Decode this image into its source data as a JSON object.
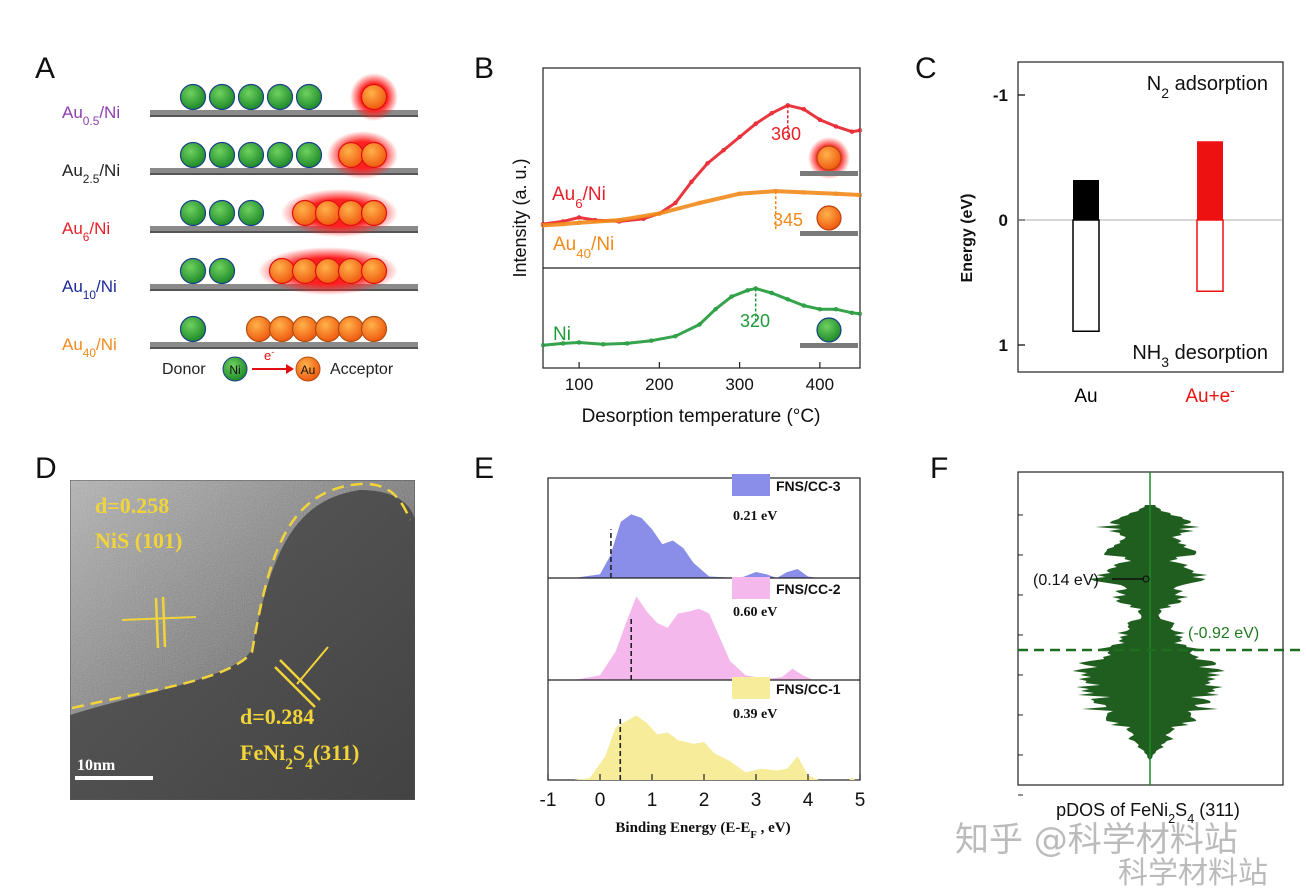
{
  "panel_labels": [
    "A",
    "B",
    "C",
    "D",
    "E",
    "F"
  ],
  "panelA": {
    "rows": [
      {
        "label": "Au",
        "sub": "0.5",
        "suffix": "/Ni",
        "color": "#8e3fb0",
        "donors": 5,
        "acceptors": 1
      },
      {
        "label": "Au",
        "sub": "2.5",
        "suffix": "/Ni",
        "color": "#222222",
        "donors": 5,
        "acceptors": 2
      },
      {
        "label": "Au",
        "sub": "6",
        "suffix": "/Ni",
        "color": "#e8202a",
        "donors": 3,
        "acceptors": 4
      },
      {
        "label": "Au",
        "sub": "10",
        "suffix": "/Ni",
        "color": "#1b2a9a",
        "donors": 2,
        "acceptors": 5
      },
      {
        "label": "Au",
        "sub": "40",
        "suffix": "/Ni",
        "color": "#f08a1c",
        "donors": 1,
        "acceptors": 6
      }
    ],
    "legend": {
      "donor": "Donor",
      "ni": "Ni",
      "electron": "e",
      "electron_sup": "-",
      "au": "Au",
      "acceptor": "Acceptor"
    }
  },
  "chart_data": [
    {
      "type": "line",
      "panel": "B",
      "xlabel": "Desorption temperature (°C)",
      "ylabel": "Intensity (a. u.)",
      "x_ticks": [
        100,
        200,
        300,
        400
      ],
      "xlim": [
        55,
        450
      ],
      "series": [
        {
          "name": "Au6/Ni",
          "label_main": "Au",
          "label_sub": "6",
          "label_suffix": "/Ni",
          "color": "#e8202a",
          "subplot": "top",
          "peak_label": "360",
          "peak_x": 360,
          "points": [
            [
              55,
              0.06
            ],
            [
              80,
              0.08
            ],
            [
              100,
              0.11
            ],
            [
              120,
              0.09
            ],
            [
              150,
              0.08
            ],
            [
              180,
              0.1
            ],
            [
              200,
              0.14
            ],
            [
              220,
              0.22
            ],
            [
              240,
              0.38
            ],
            [
              260,
              0.52
            ],
            [
              280,
              0.62
            ],
            [
              300,
              0.72
            ],
            [
              320,
              0.82
            ],
            [
              340,
              0.9
            ],
            [
              360,
              0.96
            ],
            [
              380,
              0.93
            ],
            [
              400,
              0.85
            ],
            [
              420,
              0.8
            ],
            [
              440,
              0.76
            ],
            [
              450,
              0.77
            ]
          ]
        },
        {
          "name": "Au40/Ni",
          "label_main": "Au",
          "label_sub": "40",
          "label_suffix": "/Ni",
          "color": "#f28a1a",
          "subplot": "top",
          "peak_label": "345",
          "peak_x": 345,
          "points": [
            [
              55,
              0.05
            ],
            [
              80,
              0.06
            ],
            [
              100,
              0.07
            ],
            [
              150,
              0.09
            ],
            [
              200,
              0.14
            ],
            [
              250,
              0.22
            ],
            [
              300,
              0.29
            ],
            [
              345,
              0.31
            ],
            [
              380,
              0.3
            ],
            [
              420,
              0.29
            ],
            [
              450,
              0.28
            ]
          ]
        },
        {
          "name": "Ni",
          "label_main": "Ni",
          "label_sub": "",
          "label_suffix": "",
          "color": "#1f9a3a",
          "subplot": "bottom",
          "peak_label": "320",
          "peak_x": 320,
          "points": [
            [
              55,
              0.12
            ],
            [
              80,
              0.14
            ],
            [
              100,
              0.15
            ],
            [
              130,
              0.13
            ],
            [
              160,
              0.14
            ],
            [
              190,
              0.17
            ],
            [
              220,
              0.22
            ],
            [
              250,
              0.35
            ],
            [
              270,
              0.52
            ],
            [
              290,
              0.66
            ],
            [
              310,
              0.73
            ],
            [
              320,
              0.75
            ],
            [
              340,
              0.7
            ],
            [
              360,
              0.63
            ],
            [
              380,
              0.56
            ],
            [
              400,
              0.52
            ],
            [
              420,
              0.52
            ],
            [
              440,
              0.48
            ],
            [
              450,
              0.47
            ]
          ]
        }
      ]
    },
    {
      "type": "bar",
      "panel": "C",
      "ylabel": "Energy (eV)",
      "y_ticks": [
        "-1",
        "0",
        "1"
      ],
      "ylim": [
        -1.2,
        1.2
      ],
      "categories": [
        "Au",
        "Au+e"
      ],
      "category_sup": [
        "",
        "-"
      ],
      "category_colors": [
        "#000000",
        "#ee1111"
      ],
      "annotation_top": "N2 adsorption",
      "annotation_top_main": "N",
      "annotation_top_sub": "2",
      "annotation_top_rest": " adsorption",
      "annotation_bottom_main": "NH",
      "annotation_bottom_sub": "3",
      "annotation_bottom_rest": " desorption",
      "series": [
        {
          "name": "N2 adsorption",
          "values": [
            -0.32,
            -0.63
          ],
          "style": "filled"
        },
        {
          "name": "NH3 desorption",
          "values": [
            0.89,
            0.57
          ],
          "style": "open"
        }
      ]
    },
    {
      "type": "area",
      "panel": "E",
      "xlabel_main": "Binding Energy (E-E",
      "xlabel_sub": "F",
      "xlabel_rest": " , eV)",
      "x_ticks": [
        -1,
        0,
        1,
        2,
        3,
        4,
        5
      ],
      "xlim": [
        -1,
        5
      ],
      "series": [
        {
          "name": "FNS/CC-3",
          "value_label": "0.21 eV",
          "center": 0.21,
          "color": "#8a8ee8",
          "points": [
            [
              -0.5,
              0
            ],
            [
              0,
              0.05
            ],
            [
              0.2,
              0.3
            ],
            [
              0.4,
              0.75
            ],
            [
              0.6,
              0.85
            ],
            [
              0.8,
              0.8
            ],
            [
              1.0,
              0.65
            ],
            [
              1.2,
              0.45
            ],
            [
              1.4,
              0.5
            ],
            [
              1.6,
              0.4
            ],
            [
              1.8,
              0.2
            ],
            [
              2.1,
              0.02
            ],
            [
              2.7,
              0
            ],
            [
              3.0,
              0.08
            ],
            [
              3.2,
              0.05
            ],
            [
              3.4,
              0.0
            ],
            [
              3.6,
              0.08
            ],
            [
              3.8,
              0.12
            ],
            [
              4.0,
              0.02
            ],
            [
              4.2,
              0
            ]
          ]
        },
        {
          "name": "FNS/CC-2",
          "value_label": "0.60 eV",
          "center": 0.6,
          "color": "#f5b8ec",
          "points": [
            [
              -0.5,
              0
            ],
            [
              0,
              0.05
            ],
            [
              0.3,
              0.3
            ],
            [
              0.5,
              0.6
            ],
            [
              0.7,
              0.88
            ],
            [
              0.9,
              0.72
            ],
            [
              1.1,
              0.6
            ],
            [
              1.3,
              0.55
            ],
            [
              1.5,
              0.7
            ],
            [
              1.7,
              0.72
            ],
            [
              1.9,
              0.75
            ],
            [
              2.1,
              0.7
            ],
            [
              2.3,
              0.45
            ],
            [
              2.5,
              0.2
            ],
            [
              2.8,
              0.05
            ],
            [
              3.2,
              0.01
            ],
            [
              3.5,
              0.03
            ],
            [
              3.7,
              0.12
            ],
            [
              3.9,
              0.05
            ],
            [
              4.1,
              0
            ]
          ]
        },
        {
          "name": "FNS/CC-1",
          "value_label": "0.39 eV",
          "center": 0.39,
          "color": "#f6ec99",
          "points": [
            [
              -0.5,
              0
            ],
            [
              -0.2,
              0.02
            ],
            [
              0.1,
              0.25
            ],
            [
              0.3,
              0.55
            ],
            [
              0.5,
              0.62
            ],
            [
              0.7,
              0.68
            ],
            [
              0.9,
              0.6
            ],
            [
              1.1,
              0.48
            ],
            [
              1.3,
              0.5
            ],
            [
              1.5,
              0.42
            ],
            [
              1.8,
              0.38
            ],
            [
              2.0,
              0.4
            ],
            [
              2.2,
              0.28
            ],
            [
              2.5,
              0.2
            ],
            [
              2.8,
              0.08
            ],
            [
              3.1,
              0.12
            ],
            [
              3.4,
              0.1
            ],
            [
              3.6,
              0.12
            ],
            [
              3.8,
              0.25
            ],
            [
              4.0,
              0.05
            ],
            [
              4.2,
              0
            ],
            [
              4.8,
              0
            ],
            [
              4.85,
              0.03
            ],
            [
              4.9,
              0
            ]
          ]
        }
      ]
    },
    {
      "type": "area",
      "panel": "F",
      "xlabel_main": "pDOS of FeNi",
      "xlabel_sub": "2",
      "xlabel_mid": "S",
      "xlabel_sub2": "4",
      "xlabel_rest": " (311)",
      "color": "#1f5e1f",
      "annotations": [
        {
          "text": "(0.14 eV)",
          "color": "#111111"
        },
        {
          "text": "(-0.92 eV)",
          "color": "#1f7a1f"
        }
      ]
    }
  ],
  "panelD": {
    "lattice_top": "d=0.258",
    "phase_top": "NiS (101)",
    "lattice_bottom": "d=0.284",
    "phase_bottom_main": "FeNi",
    "phase_bottom_sub": "2",
    "phase_bottom_mid": "S",
    "phase_bottom_sub2": "4",
    "phase_bottom_rest": "(311)",
    "scale_bar": "10nm",
    "label_color": "#f1d43a"
  },
  "watermark": {
    "line1": "知乎 @科学材料站",
    "line2": "科学材料站"
  }
}
